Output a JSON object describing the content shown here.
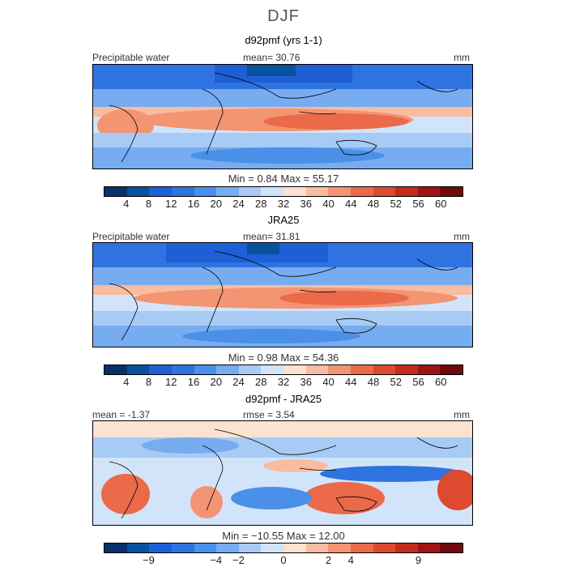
{
  "title": "DJF",
  "colors": [
    "#08306b",
    "#08519c",
    "#1f5fd6",
    "#2f73e0",
    "#4a90e8",
    "#78acf0",
    "#a7cbf5",
    "#d2e4fa",
    "#fde1d1",
    "#f8bca0",
    "#f39472",
    "#ea6a49",
    "#dc4a30",
    "#c22b1d",
    "#9f1414",
    "#6e0a0a"
  ],
  "panels": [
    {
      "name": "d92pmf (yrs 1-1)",
      "var_label": "Precipitable water",
      "stat_text": "mean=   30.76",
      "unit": "mm",
      "minmax": "Min =     0.84  Max =   55.17",
      "ticks": [
        "4",
        "8",
        "12",
        "16",
        "20",
        "24",
        "28",
        "32",
        "36",
        "40",
        "44",
        "48",
        "52",
        "56",
        "60"
      ]
    },
    {
      "name": "JRA25",
      "var_label": "Precipitable water",
      "stat_text": "mean=   31.81",
      "unit": "mm",
      "minmax": "Min =     0.98  Max =   54.36",
      "ticks": [
        "4",
        "8",
        "12",
        "16",
        "20",
        "24",
        "28",
        "32",
        "36",
        "40",
        "44",
        "48",
        "52",
        "56",
        "60"
      ]
    },
    {
      "name": "d92pmf - JRA25",
      "var_label": "mean =   -1.37",
      "stat_text": "rmse =     3.54",
      "unit": "mm",
      "minmax": "Min = −10.55  Max =   12.00",
      "ticks": [
        "−9",
        "−4",
        "−2",
        "0",
        "2",
        "4",
        "9"
      ]
    }
  ]
}
